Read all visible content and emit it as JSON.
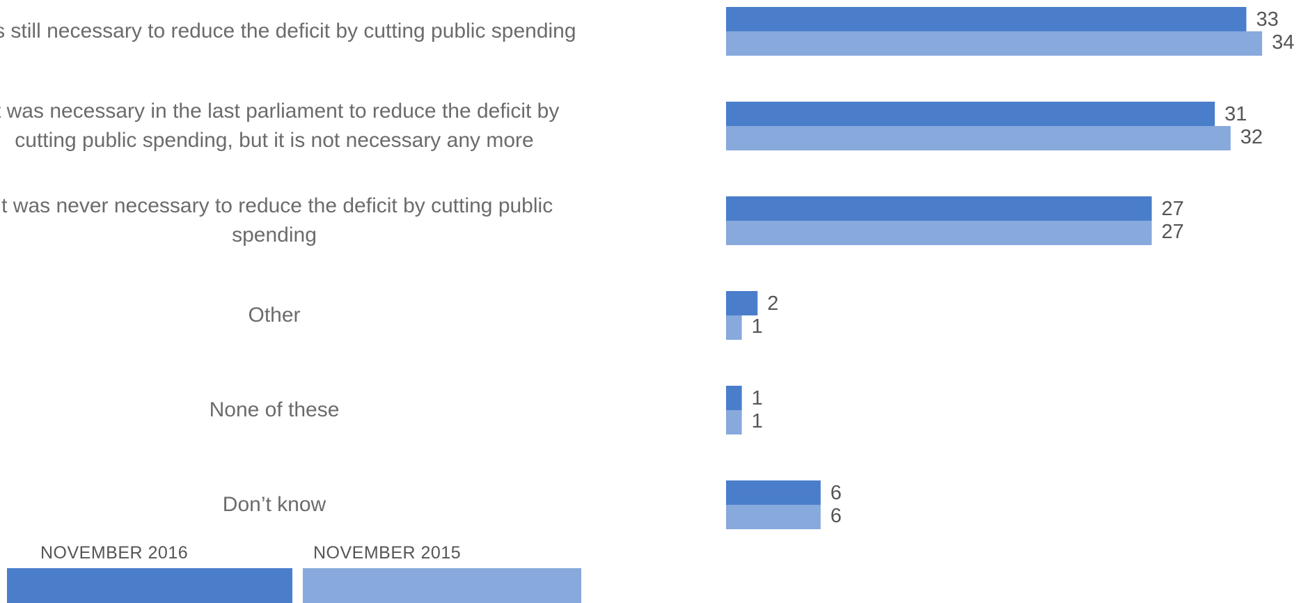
{
  "chart_data": {
    "type": "bar",
    "orientation": "horizontal",
    "categories": [
      "It is still necessary to reduce the deficit by cutting public spending",
      "It was necessary in the last parliament to reduce the deficit by cutting public spending, but it is not necessary any more",
      "It was never necessary to reduce the deficit by cutting public spending",
      "Other",
      "None of these",
      "Don’t know"
    ],
    "series": [
      {
        "name": "NOVEMBER 2016",
        "values": [
          33,
          31,
          27,
          2,
          1,
          6
        ],
        "color": "#4a7ecb"
      },
      {
        "name": "NOVEMBER 2015",
        "values": [
          34,
          32,
          27,
          1,
          1,
          6
        ],
        "color": "#87a9dc"
      }
    ],
    "title": "",
    "xlabel": "",
    "ylabel": "",
    "xlim": [
      0,
      34
    ],
    "grid": false,
    "data_labels": true,
    "legend_position": "bottom-left"
  }
}
